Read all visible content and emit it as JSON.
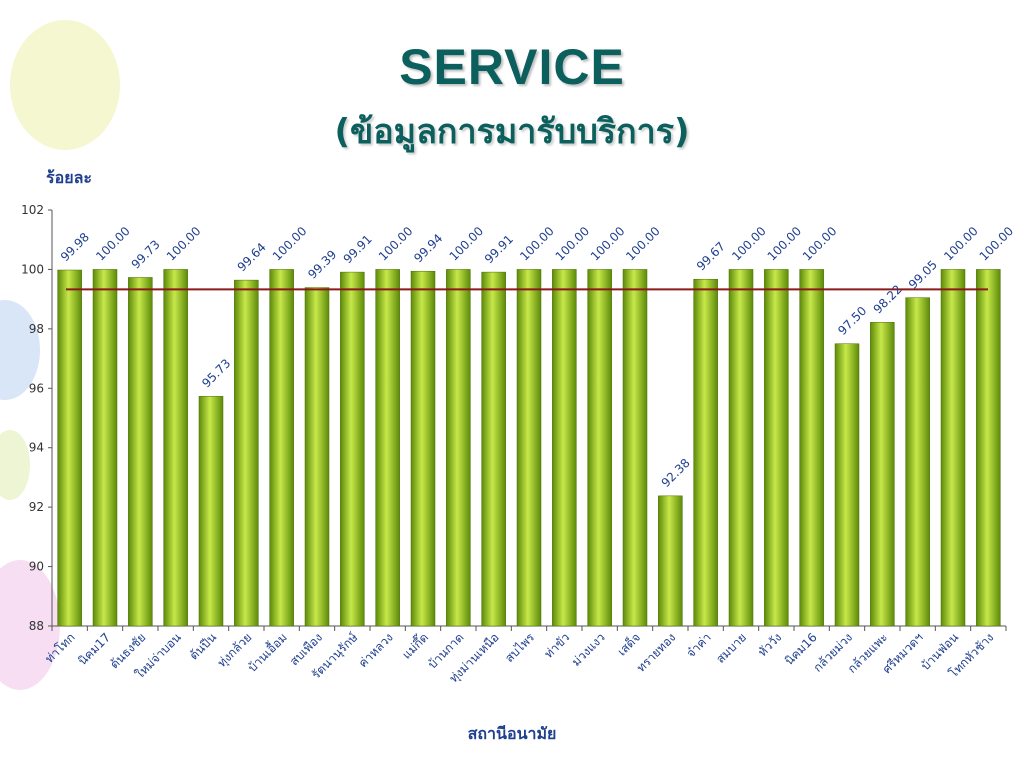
{
  "title": "SERVICE",
  "subtitle": "(ข้อมูลการมารับบริการ)",
  "colors": {
    "title": "#0b5f5c",
    "bar_light": "#c7e84a",
    "bar_dark": "#5c8a08",
    "target_line": "#8b1a1a",
    "axis_text": "#1f3f8f"
  },
  "chart_data": {
    "type": "bar",
    "ylabel": "ร้อยละ",
    "xlabel": "สถานีอนามัย",
    "ylim": [
      88,
      102
    ],
    "yticks": [
      88,
      90,
      92,
      94,
      96,
      98,
      100,
      102
    ],
    "reference_line": 99.33,
    "categories": [
      "ท่าโทก",
      "นิคม17",
      "ต้นธงชัย",
      "ใหม่จ่าบอน",
      "ต้นปีน",
      "ทุ่งกล้วย",
      "บ้านเอื้อม",
      "สบเพือง",
      "รัตนานุรักษ์",
      "ค่าหลวง",
      "แม่กึ๊ด",
      "บ้านกาด",
      "ทุ่งม่านเหนือ",
      "สบไพร",
      "ท่าขัว",
      "ม่วงแงว",
      "เสด็จ",
      "ทรายทอง",
      "จ๋าค่า",
      "สมบาย",
      "หัววัง",
      "นิคม16",
      "กล้วยม่วง",
      "กล้วยแพะ",
      "ศรีหมวดฯ",
      "บ้านฟ่อน",
      "โทกหัวช้าง"
    ],
    "values": [
      99.98,
      100.0,
      99.73,
      100.0,
      95.73,
      99.64,
      100.0,
      99.39,
      99.91,
      100.0,
      99.94,
      100.0,
      99.91,
      100.0,
      100.0,
      100.0,
      100.0,
      92.38,
      99.67,
      100.0,
      100.0,
      100.0,
      97.5,
      98.22,
      99.05,
      100.0,
      100.0
    ],
    "labels": [
      "99.98",
      "100.00",
      "99.73",
      "100.00",
      "95.73",
      "99.64",
      "100.00",
      "99.39",
      "99.91",
      "100.00",
      "99.94",
      "100.00",
      "99.91",
      "100.00",
      "100.00",
      "100.00",
      "100.00",
      "92.38",
      "99.67",
      "100.00",
      "100.00",
      "100.00",
      "97.50",
      "98.22",
      "99.05",
      "100.00",
      "100.00"
    ],
    "grid": false,
    "legend": "none"
  }
}
